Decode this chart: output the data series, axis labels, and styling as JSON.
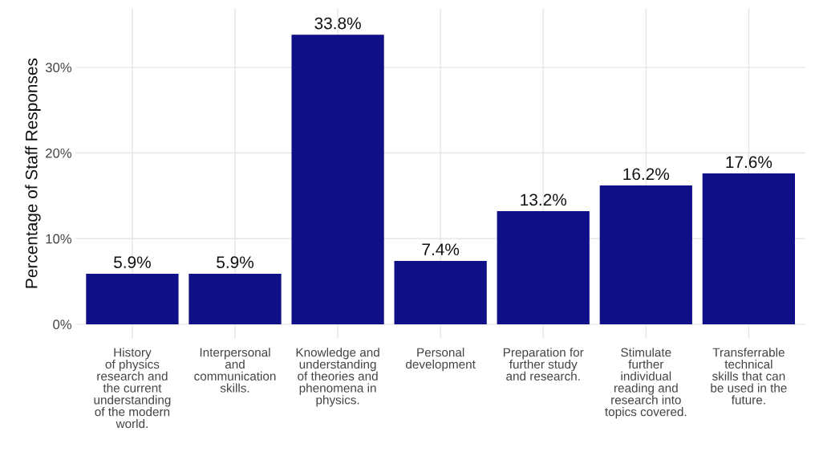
{
  "chart_data": {
    "type": "bar",
    "ylabel": "Percentage of Staff Responses",
    "categories": [
      "History\nof physics\nresearch and\nthe current\nunderstanding\nof the modern\nworld.",
      "Interpersonal\nand\ncommunication\nskills.",
      "Knowledge and\nunderstanding\nof theories and\nphenomena in\nphysics.",
      "Personal\ndevelopment",
      "Preparation for\nfurther study\nand research.",
      "Stimulate\nfurther\nindividual\nreading and\nresearch into\ntopics covered.",
      "Transferrable\ntechnical\nskills that can\nbe used in the\nfuture."
    ],
    "values": [
      5.9,
      5.9,
      33.8,
      7.4,
      13.2,
      16.2,
      17.6
    ],
    "value_labels": [
      "5.9%",
      "5.9%",
      "33.8%",
      "7.4%",
      "13.2%",
      "16.2%",
      "17.6%"
    ],
    "color": "#0f0f87",
    "ylim": [
      -1.7,
      36.9
    ],
    "yticks": [
      {
        "value": 0,
        "label": "0%"
      },
      {
        "value": 10,
        "label": "10%"
      },
      {
        "value": 20,
        "label": "20%"
      },
      {
        "value": 30,
        "label": "30%"
      }
    ],
    "grid": true
  }
}
